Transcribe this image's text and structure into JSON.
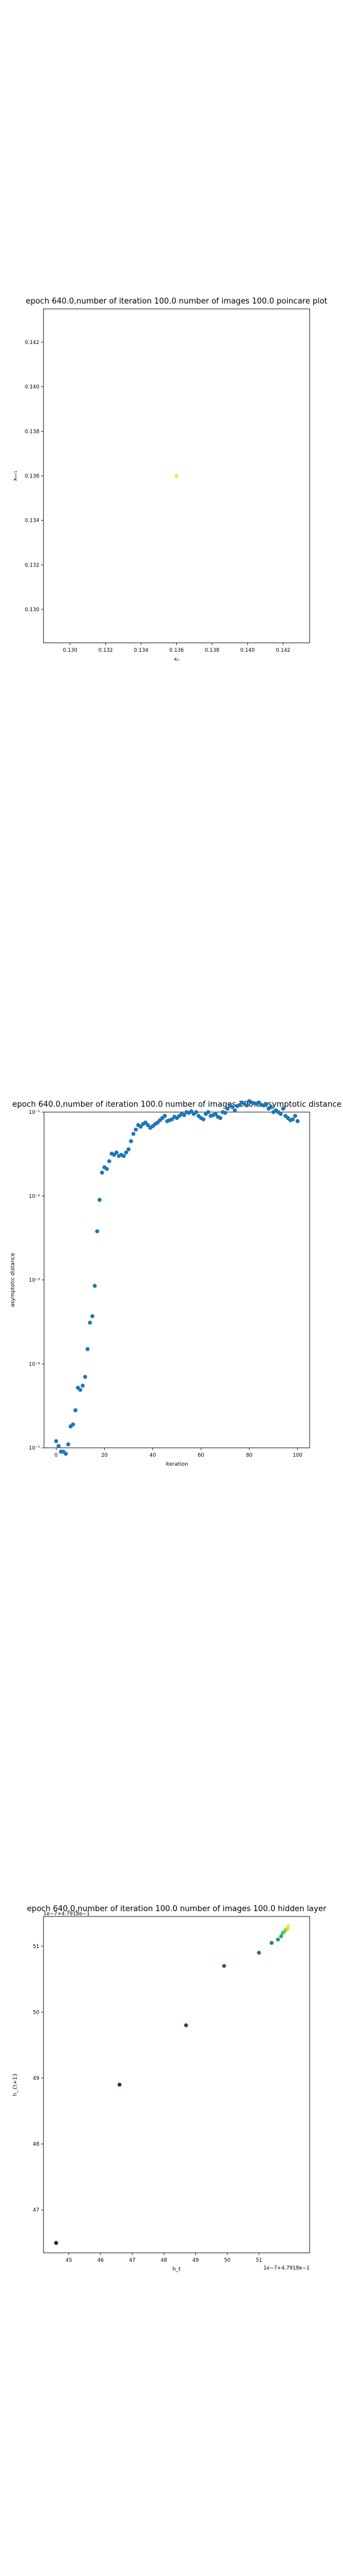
{
  "chart_data": [
    {
      "type": "scatter",
      "title": "epoch 640.0,number of iteration 100.0 number of images 100.0 poincare plot",
      "xlabel": "xₙ",
      "ylabel": "xₙ₊₁",
      "xlim": [
        0.1285,
        0.1435
      ],
      "ylim": [
        0.1285,
        0.1435
      ],
      "xticks": [
        "0.130",
        "0.132",
        "0.134",
        "0.136",
        "0.138",
        "0.140",
        "0.142"
      ],
      "yticks": [
        "0.130",
        "0.132",
        "0.134",
        "0.136",
        "0.138",
        "0.140",
        "0.142"
      ],
      "grid": false,
      "color": "#fde725",
      "points": [
        [
          0.136,
          0.136
        ]
      ]
    },
    {
      "type": "scatter",
      "title": "epoch 640.0,number of iteration 100.0  number of images 100.0 asymptotic distance",
      "xlabel": "iteration",
      "ylabel": "asymptotic distance",
      "xlim": [
        -5,
        105
      ],
      "ylim": [
        1e-05,
        0.1
      ],
      "yscale": "log",
      "xticks": [
        "0",
        "20",
        "40",
        "60",
        "80",
        "100"
      ],
      "yticks": [
        "10⁻¹",
        "10⁻²",
        "10⁻³",
        "10⁻⁴",
        "10⁻⁵"
      ],
      "grid": false,
      "color": "#1f77b4",
      "x": [
        0,
        1,
        2,
        3,
        4,
        5,
        6,
        7,
        8,
        9,
        10,
        11,
        12,
        13,
        14,
        15,
        16,
        17,
        18,
        19,
        20,
        21,
        22,
        23,
        24,
        25,
        26,
        27,
        28,
        29,
        30,
        31,
        32,
        33,
        34,
        35,
        36,
        37,
        38,
        39,
        40,
        41,
        42,
        43,
        44,
        45,
        46,
        47,
        48,
        49,
        50,
        51,
        52,
        53,
        54,
        55,
        56,
        57,
        58,
        59,
        60,
        61,
        62,
        63,
        64,
        65,
        66,
        67,
        68,
        69,
        70,
        71,
        72,
        73,
        74,
        75,
        76,
        77,
        78,
        79,
        80,
        81,
        82,
        83,
        84,
        85,
        86,
        87,
        88,
        89,
        90,
        91,
        92,
        93,
        94,
        95,
        96,
        97,
        98,
        99,
        100
      ],
      "y": [
        1.2e-05,
        1.05e-05,
        9e-06,
        9e-06,
        8.5e-06,
        1.1e-05,
        1.8e-05,
        1.9e-05,
        2.8e-05,
        5.2e-05,
        4.9e-05,
        5.5e-05,
        7e-05,
        0.00015,
        0.00031,
        0.00037,
        0.00085,
        0.0038,
        0.009,
        0.019,
        0.022,
        0.021,
        0.026,
        0.032,
        0.031,
        0.033,
        0.03,
        0.031,
        0.03,
        0.033,
        0.036,
        0.045,
        0.055,
        0.062,
        0.07,
        0.067,
        0.072,
        0.075,
        0.07,
        0.065,
        0.068,
        0.072,
        0.075,
        0.08,
        0.085,
        0.09,
        0.078,
        0.08,
        0.082,
        0.088,
        0.085,
        0.09,
        0.095,
        0.092,
        0.1,
        0.098,
        0.102,
        0.095,
        0.1,
        0.09,
        0.085,
        0.082,
        0.095,
        0.1,
        0.09,
        0.092,
        0.095,
        0.088,
        0.085,
        0.1,
        0.098,
        0.11,
        0.12,
        0.115,
        0.105,
        0.118,
        0.122,
        0.13,
        0.125,
        0.12,
        0.135,
        0.13,
        0.128,
        0.125,
        0.13,
        0.122,
        0.12,
        0.125,
        0.11,
        0.115,
        0.1,
        0.105,
        0.1,
        0.095,
        0.11,
        0.09,
        0.085,
        0.08,
        0.082,
        0.09,
        0.078
      ]
    },
    {
      "type": "scatter",
      "title": "epoch 640.0,number of iteration 100.0  number of images 100.0 hidden layer",
      "xlabel": "h_t",
      "ylabel": "h_{t+1}",
      "x_offset_label": "1e−7+4.7918e−1",
      "y_offset_label": "1e−7+4.7918e−1",
      "xlim": [
        44.2,
        52.6
      ],
      "ylim": [
        46.35,
        51.45
      ],
      "xticks": [
        "45",
        "46",
        "47",
        "48",
        "49",
        "50",
        "51"
      ],
      "yticks": [
        "47",
        "48",
        "49",
        "50",
        "51"
      ],
      "grid": false,
      "colormap": "viridis",
      "points": [
        [
          44.6,
          46.5
        ],
        [
          46.6,
          48.9
        ],
        [
          48.7,
          49.8
        ],
        [
          49.9,
          50.7
        ],
        [
          51.0,
          50.9
        ],
        [
          51.4,
          51.05
        ],
        [
          51.6,
          51.1
        ],
        [
          51.7,
          51.15
        ],
        [
          51.75,
          51.2
        ],
        [
          51.8,
          51.22
        ],
        [
          51.85,
          51.25
        ],
        [
          51.9,
          51.27
        ],
        [
          51.92,
          51.3
        ]
      ]
    }
  ]
}
